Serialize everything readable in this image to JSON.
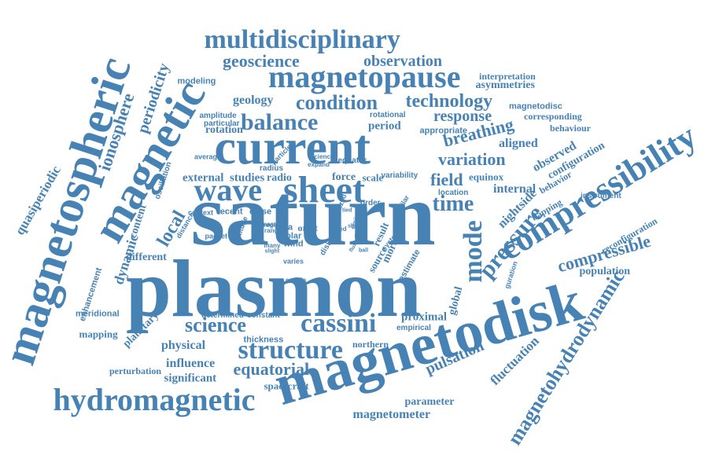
{
  "colors": {
    "word": "#4682b4",
    "background": "#ffffff"
  },
  "words": [
    "saturn",
    "plasmon",
    "current",
    "sheet",
    "wave",
    "magnetodisk",
    "magnetospheric",
    "magnetic",
    "compressibility",
    "magnetopause",
    "multidisciplinary",
    "hydromagnetic",
    "magnetohydrodynamic",
    "structure",
    "cassini",
    "balance",
    "condition",
    "technology",
    "mode",
    "time",
    "pressure",
    "compressible",
    "pulsation",
    "fluctuation",
    "science",
    "equatorial",
    "ionosphere",
    "local",
    "periodicity",
    "geoscience",
    "observation",
    "variation",
    "field",
    "breathing",
    "response",
    "quasiperiodic",
    "magnetometer",
    "dynamic",
    "nightside",
    "internal",
    "observed",
    "aligned",
    "geology",
    "period",
    "rotation",
    "external",
    "studies",
    "radio",
    "force",
    "scale",
    "equinox",
    "configuration",
    "behavior",
    "flapping",
    "reconfiguration",
    "population",
    "proximal",
    "global",
    "more",
    "different",
    "content",
    "planetary",
    "physical",
    "influence",
    "significant",
    "spacecraft",
    "parameter",
    "northern",
    "perturbation",
    "mapping",
    "meridional",
    "enhancement",
    "modeling",
    "asymmetries",
    "interpretation",
    "magnetodisc",
    "corresponding",
    "behaviour",
    "instrument",
    "appropriate",
    "rotational",
    "amplitude",
    "particular",
    "oscillation",
    "determined",
    "constant",
    "thickness",
    "empirical",
    "estimate",
    "result",
    "source",
    "data",
    "orbit",
    "solar",
    "wind",
    "close",
    "recent",
    "variability",
    "equator",
    "radius",
    "particle",
    "location",
    "average",
    "distance",
    "context",
    "packet",
    "region",
    "range",
    "order",
    "similar",
    "ionized",
    "latitude",
    "system",
    "disk",
    "rate",
    "varies",
    "certain",
    "mass",
    "many",
    "slight",
    "sciences",
    "expand",
    "guration",
    "emitted",
    "shape",
    "point",
    "flux",
    "ball",
    "speed",
    "tied"
  ]
}
